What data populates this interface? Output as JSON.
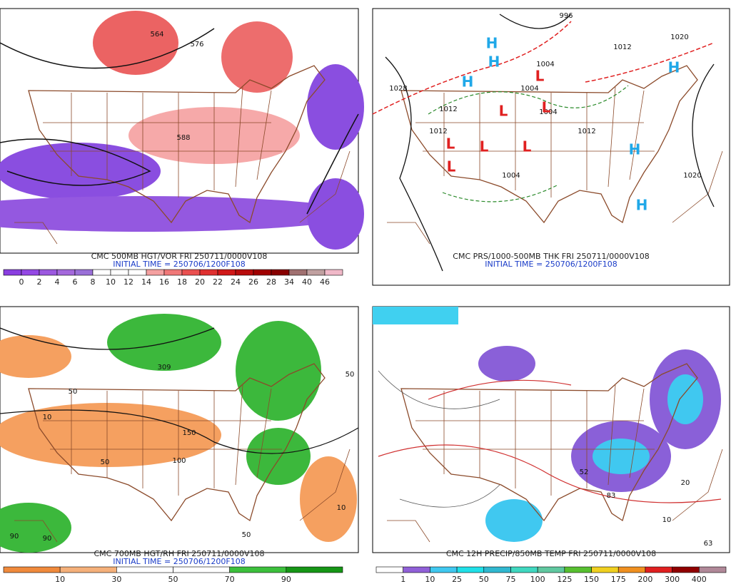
{
  "panels": [
    {
      "title": "CMC 500MB HGT/VOR FRI 250711/0000V108",
      "subtitle": "INITIAL TIME = 250706/1200F108",
      "colorbar": {
        "labels": [
          0,
          2,
          4,
          6,
          8,
          10,
          12,
          14,
          16,
          18,
          20,
          22,
          24,
          26,
          28,
          34,
          40,
          46
        ],
        "colors": [
          "#8a3ee0",
          "#9448e4",
          "#9c58e0",
          "#a468dc",
          "#9a70d8",
          "#ffffff",
          "#ffffff",
          "#ffffff",
          "#f4a0a0",
          "#f07878",
          "#ea5050",
          "#e03030",
          "#d01818",
          "#b80c0c",
          "#a00000",
          "#880000",
          "#a07070",
          "#c0a0a0",
          "#f0b8c8"
        ]
      },
      "map_labels": [
        "564",
        "576",
        "588"
      ]
    },
    {
      "title": "CMC PRS/1000-500MB THK FRI 250711/0000V108",
      "subtitle": "INITIAL TIME = 250706/1200F108",
      "map_labels": [
        "996",
        "1012",
        "1020",
        "1028",
        "1004",
        "1004",
        "1012",
        "1012",
        "1004",
        "1012",
        "1020",
        "1004",
        "H",
        "H",
        "H",
        "H",
        "H",
        "H",
        "L",
        "L",
        "L",
        "L",
        "L",
        "L",
        "L"
      ]
    },
    {
      "title": "CMC 700MB HGT/RH FRI 250711/0000V108",
      "subtitle": "INITIAL TIME = 250706/1200F108",
      "colorbar": {
        "labels": [
          10,
          30,
          50,
          70,
          90
        ],
        "colors": [
          "#f08a3c",
          "#f5b07a",
          "#ffffff",
          "#ffffff",
          "#3cc03c",
          "#169616"
        ]
      },
      "map_labels": [
        "309",
        "10",
        "50",
        "100",
        "50",
        "90",
        "90",
        "10",
        "50",
        "150",
        "50"
      ]
    },
    {
      "title": "CMC 12H PRECIP/850MB TEMP FRI 250711/0000V108",
      "colorbar": {
        "labels": [
          1,
          10,
          25,
          50,
          75,
          100,
          125,
          150,
          175,
          200,
          300,
          400
        ],
        "colors": [
          "#ffffff",
          "#9060d8",
          "#40c8f0",
          "#20e0e8",
          "#30b8d0",
          "#40d8c0",
          "#60c8a0",
          "#58c030",
          "#f0d020",
          "#f09020",
          "#e02020",
          "#900000",
          "#b08898"
        ]
      },
      "map_labels": [
        "52",
        "83",
        "10",
        "63",
        "20"
      ]
    }
  ]
}
